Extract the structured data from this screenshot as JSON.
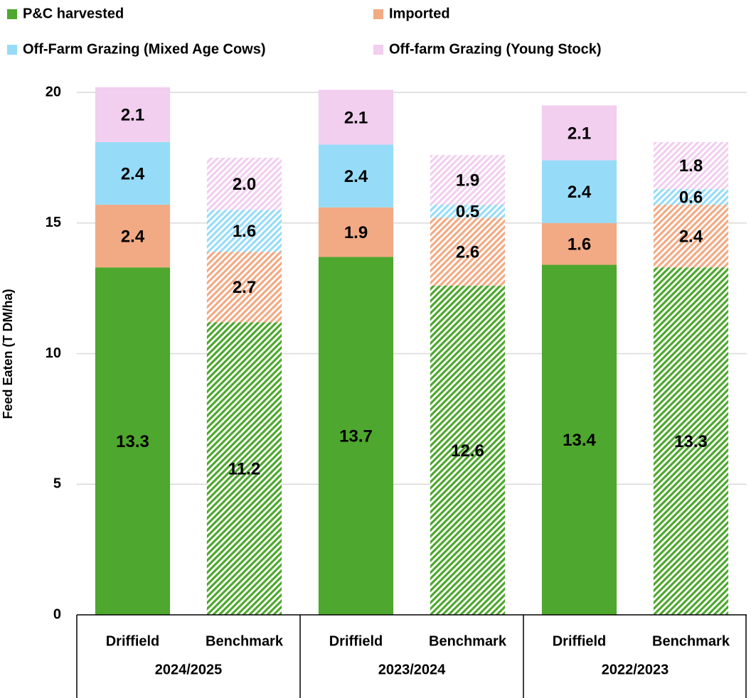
{
  "chart_data": {
    "type": "stacked_bar",
    "y_axis_label": "Feed Eaten (T DM/ha)",
    "categories": [
      "Driffield",
      "Benchmark",
      "Driffield",
      "Benchmark",
      "Driffield",
      "Benchmark"
    ],
    "groups": [
      "2024/2025",
      "2023/2024",
      "2022/2023"
    ],
    "hatched": [
      false,
      true,
      false,
      true,
      false,
      true
    ],
    "series": [
      {
        "name": "P&C harvested",
        "color": "#4ea72e",
        "values": [
          13.3,
          11.2,
          13.7,
          12.6,
          13.4,
          13.3
        ],
        "value_labels": [
          "13.3",
          "11.2",
          "13.7",
          "12.6",
          "13.4",
          "13.3"
        ]
      },
      {
        "name": "Imported",
        "color": "#f2aa84",
        "values": [
          2.4,
          2.7,
          1.9,
          2.6,
          1.6,
          2.4
        ],
        "value_labels": [
          "2.4",
          "2.7",
          "1.9",
          "2.6",
          "1.6",
          "2.4"
        ]
      },
      {
        "name": "Off-Farm Grazing (Mixed Age Cows)",
        "color": "#96dcf8",
        "values": [
          2.4,
          1.6,
          2.4,
          0.5,
          2.4,
          0.6
        ],
        "value_labels": [
          "2.4",
          "1.6",
          "2.4",
          "0.5",
          "2.4",
          "0.6"
        ]
      },
      {
        "name": "Off-farm Grazing (Young Stock)",
        "color": "#f2ceef",
        "values": [
          2.1,
          2.0,
          2.1,
          1.9,
          2.1,
          1.8
        ],
        "value_labels": [
          "2.1",
          "2.0",
          "2.1",
          "1.9",
          "2.1",
          "1.8"
        ]
      }
    ],
    "ylim": [
      0,
      20
    ],
    "yticks": [
      0,
      5,
      10,
      15,
      20
    ],
    "grid": true,
    "legend": "top"
  }
}
